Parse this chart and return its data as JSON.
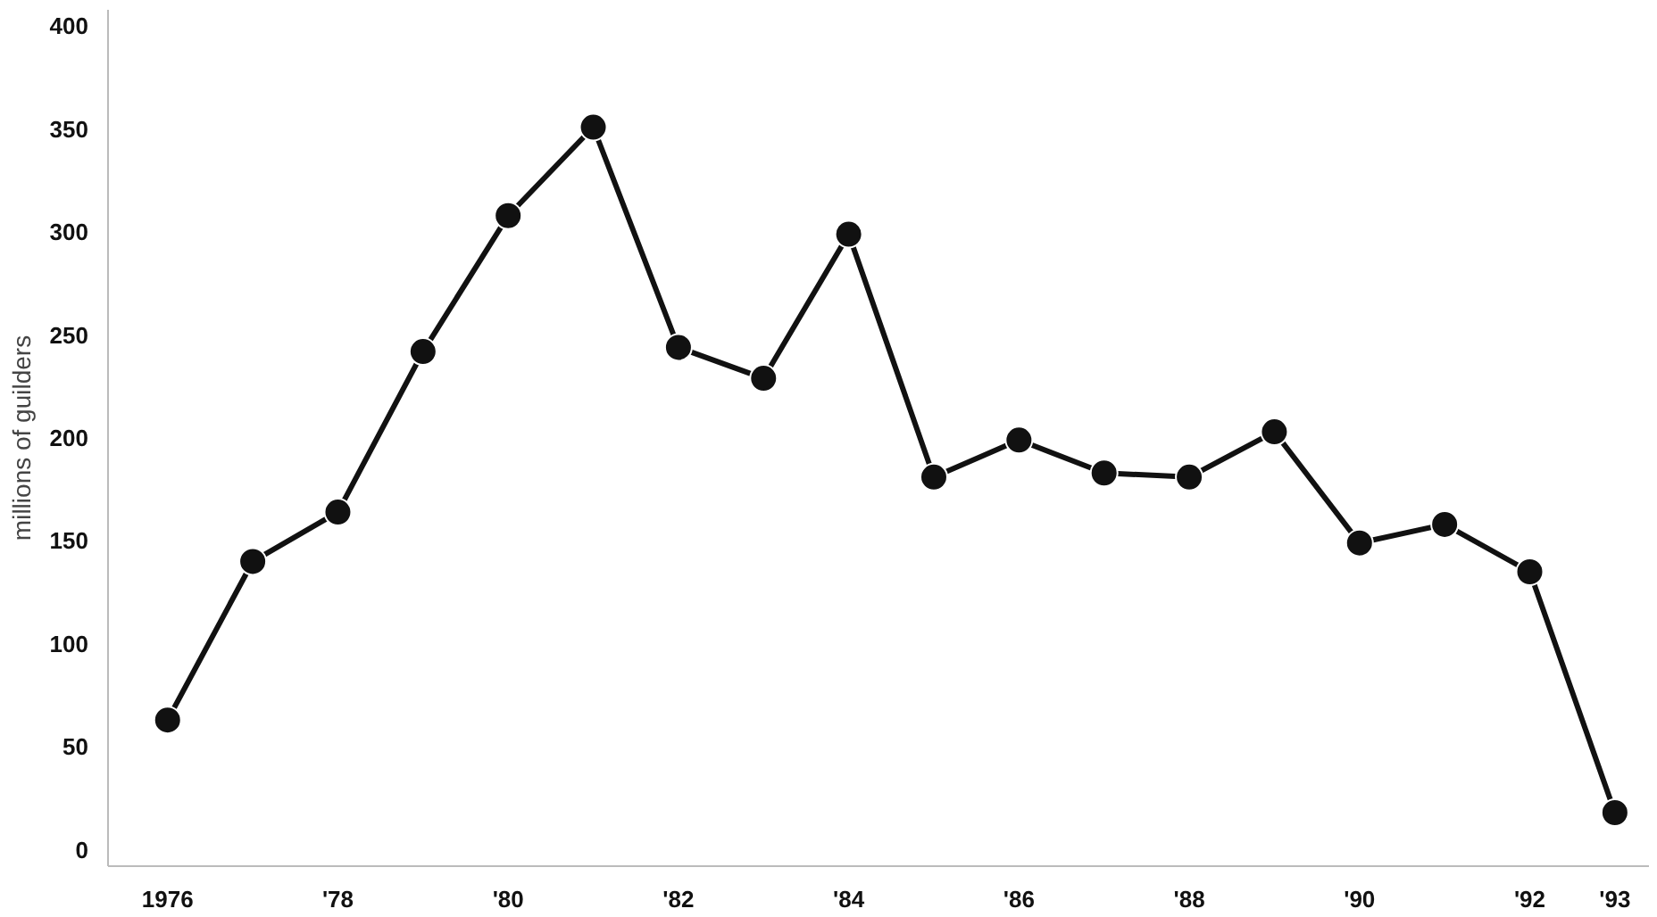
{
  "chart_data": {
    "type": "line",
    "ylabel": "millions of guilders",
    "x": [
      1976,
      1977,
      1978,
      1979,
      1980,
      1981,
      1982,
      1983,
      1984,
      1985,
      1986,
      1987,
      1988,
      1989,
      1990,
      1991,
      1992,
      1993
    ],
    "series": [
      {
        "color": "#111111",
        "values": [
          63,
          140,
          164,
          242,
          308,
          351,
          244,
          229,
          299,
          181,
          199,
          183,
          181,
          203,
          149,
          158,
          135,
          18
        ]
      }
    ],
    "xlim": [
      1975.3,
      1993.4
    ],
    "ylim": [
      -8,
      408
    ],
    "xticks": [
      1976,
      {
        "value": 1978,
        "label": "'78"
      },
      {
        "value": 1980,
        "label": "'80"
      },
      {
        "value": 1982,
        "label": "'82"
      },
      {
        "value": 1984,
        "label": "'84"
      },
      {
        "value": 1986,
        "label": "'86"
      },
      {
        "value": 1988,
        "label": "'88"
      },
      {
        "value": 1990,
        "label": "'90"
      },
      {
        "value": 1992,
        "label": "'92"
      },
      {
        "value": 1993,
        "label": "'93"
      }
    ],
    "yticks": [
      0,
      50,
      100,
      150,
      200,
      250,
      300,
      350,
      400
    ],
    "marker": "circle",
    "line_style": "solid",
    "grid": false
  }
}
